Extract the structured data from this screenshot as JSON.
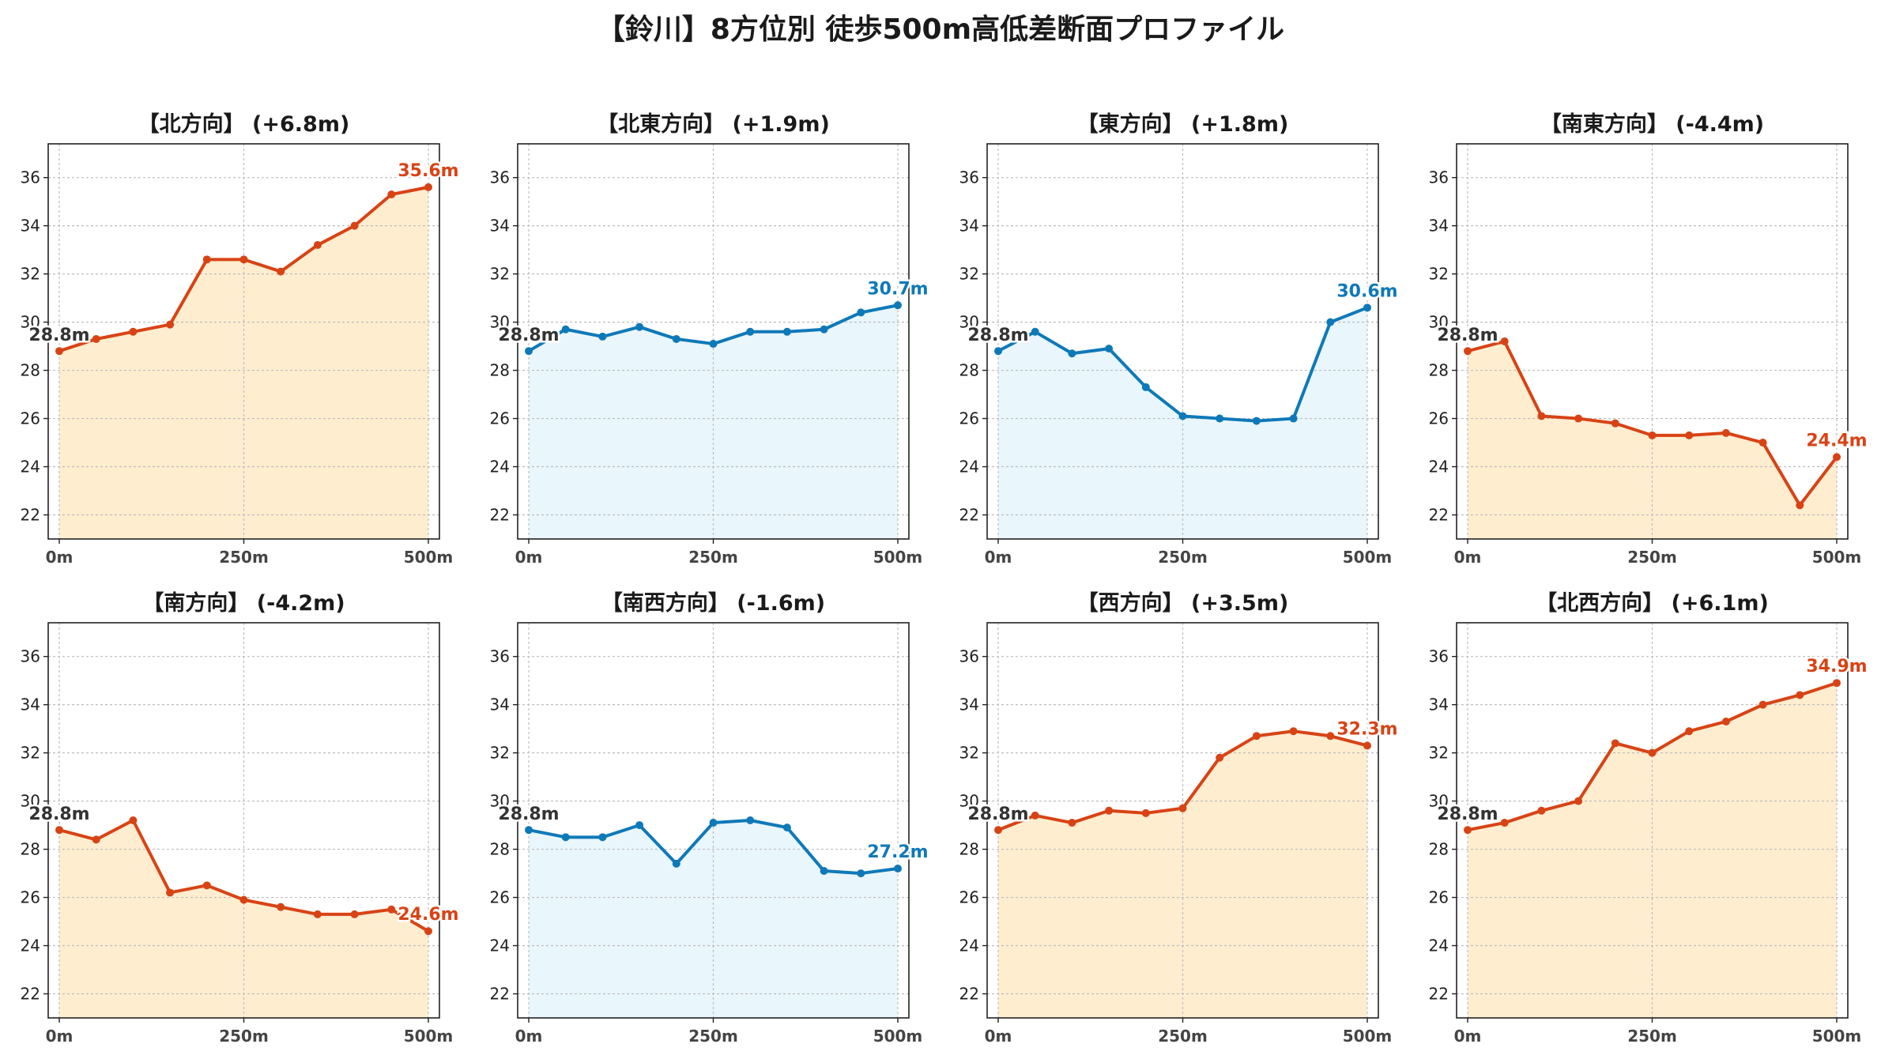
{
  "figure": {
    "title": "【鈴川】8方位別 徒歩500m高低差断面プロファイル"
  },
  "colors": {
    "up_line": "#d84315",
    "up_fill": "#ffedd0",
    "down_line": "#0e79b8",
    "down_fill": "#e9f6fb",
    "grid": "#bdbdbd",
    "start_label": "#333333"
  },
  "chart_data": [
    {
      "type": "area",
      "title": "【北方向】 (+6.8m)",
      "trend": "up",
      "x": [
        0,
        50,
        100,
        150,
        200,
        250,
        300,
        350,
        400,
        450,
        500
      ],
      "y": [
        28.8,
        29.3,
        29.6,
        29.9,
        32.6,
        32.6,
        32.1,
        33.2,
        34.0,
        35.3,
        35.6
      ],
      "start_label": "28.8m",
      "end_label": "35.6m",
      "xlim": [
        -15,
        515
      ],
      "ylim": [
        21,
        37.4
      ],
      "xticks": [
        0,
        250,
        500
      ],
      "xtick_labels": [
        "0m",
        "250m",
        "500m"
      ],
      "yticks": [
        22,
        24,
        26,
        28,
        30,
        32,
        34,
        36
      ],
      "grid": true
    },
    {
      "type": "area",
      "title": "【北東方向】 (+1.9m)",
      "trend": "down",
      "x": [
        0,
        50,
        100,
        150,
        200,
        250,
        300,
        350,
        400,
        450,
        500
      ],
      "y": [
        28.8,
        29.7,
        29.4,
        29.8,
        29.3,
        29.1,
        29.6,
        29.6,
        29.7,
        30.4,
        30.7
      ],
      "start_label": "28.8m",
      "end_label": "30.7m",
      "xlim": [
        -15,
        515
      ],
      "ylim": [
        21,
        37.4
      ],
      "xticks": [
        0,
        250,
        500
      ],
      "xtick_labels": [
        "0m",
        "250m",
        "500m"
      ],
      "yticks": [
        22,
        24,
        26,
        28,
        30,
        32,
        34,
        36
      ],
      "grid": true
    },
    {
      "type": "area",
      "title": "【東方向】 (+1.8m)",
      "trend": "down",
      "x": [
        0,
        50,
        100,
        150,
        200,
        250,
        300,
        350,
        400,
        450,
        500
      ],
      "y": [
        28.8,
        29.6,
        28.7,
        28.9,
        27.3,
        26.1,
        26.0,
        25.9,
        26.0,
        30.0,
        30.6
      ],
      "start_label": "28.8m",
      "end_label": "30.6m",
      "xlim": [
        -15,
        515
      ],
      "ylim": [
        21,
        37.4
      ],
      "xticks": [
        0,
        250,
        500
      ],
      "xtick_labels": [
        "0m",
        "250m",
        "500m"
      ],
      "yticks": [
        22,
        24,
        26,
        28,
        30,
        32,
        34,
        36
      ],
      "grid": true
    },
    {
      "type": "area",
      "title": "【南東方向】 (-4.4m)",
      "trend": "up",
      "x": [
        0,
        50,
        100,
        150,
        200,
        250,
        300,
        350,
        400,
        450,
        500
      ],
      "y": [
        28.8,
        29.2,
        26.1,
        26.0,
        25.8,
        25.3,
        25.3,
        25.4,
        25.0,
        22.4,
        24.4
      ],
      "start_label": "28.8m",
      "end_label": "24.4m",
      "xlim": [
        -15,
        515
      ],
      "ylim": [
        21,
        37.4
      ],
      "xticks": [
        0,
        250,
        500
      ],
      "xtick_labels": [
        "0m",
        "250m",
        "500m"
      ],
      "yticks": [
        22,
        24,
        26,
        28,
        30,
        32,
        34,
        36
      ],
      "grid": true
    },
    {
      "type": "area",
      "title": "【南方向】 (-4.2m)",
      "trend": "up",
      "x": [
        0,
        50,
        100,
        150,
        200,
        250,
        300,
        350,
        400,
        450,
        500
      ],
      "y": [
        28.8,
        28.4,
        29.2,
        26.2,
        26.5,
        25.9,
        25.6,
        25.3,
        25.3,
        25.5,
        24.6
      ],
      "start_label": "28.8m",
      "end_label": "24.6m",
      "xlim": [
        -15,
        515
      ],
      "ylim": [
        21,
        37.4
      ],
      "xticks": [
        0,
        250,
        500
      ],
      "xtick_labels": [
        "0m",
        "250m",
        "500m"
      ],
      "yticks": [
        22,
        24,
        26,
        28,
        30,
        32,
        34,
        36
      ],
      "grid": true
    },
    {
      "type": "area",
      "title": "【南西方向】 (-1.6m)",
      "trend": "down",
      "x": [
        0,
        50,
        100,
        150,
        200,
        250,
        300,
        350,
        400,
        450,
        500
      ],
      "y": [
        28.8,
        28.5,
        28.5,
        29.0,
        27.4,
        29.1,
        29.2,
        28.9,
        27.1,
        27.0,
        27.2
      ],
      "start_label": "28.8m",
      "end_label": "27.2m",
      "xlim": [
        -15,
        515
      ],
      "ylim": [
        21,
        37.4
      ],
      "xticks": [
        0,
        250,
        500
      ],
      "xtick_labels": [
        "0m",
        "250m",
        "500m"
      ],
      "yticks": [
        22,
        24,
        26,
        28,
        30,
        32,
        34,
        36
      ],
      "grid": true
    },
    {
      "type": "area",
      "title": "【西方向】 (+3.5m)",
      "trend": "up",
      "x": [
        0,
        50,
        100,
        150,
        200,
        250,
        300,
        350,
        400,
        450,
        500
      ],
      "y": [
        28.8,
        29.4,
        29.1,
        29.6,
        29.5,
        29.7,
        31.8,
        32.7,
        32.9,
        32.7,
        32.3
      ],
      "start_label": "28.8m",
      "end_label": "32.3m",
      "xlim": [
        -15,
        515
      ],
      "ylim": [
        21,
        37.4
      ],
      "xticks": [
        0,
        250,
        500
      ],
      "xtick_labels": [
        "0m",
        "250m",
        "500m"
      ],
      "yticks": [
        22,
        24,
        26,
        28,
        30,
        32,
        34,
        36
      ],
      "grid": true
    },
    {
      "type": "area",
      "title": "【北西方向】 (+6.1m)",
      "trend": "up",
      "x": [
        0,
        50,
        100,
        150,
        200,
        250,
        300,
        350,
        400,
        450,
        500
      ],
      "y": [
        28.8,
        29.1,
        29.6,
        30.0,
        32.4,
        32.0,
        32.9,
        33.3,
        34.0,
        34.4,
        34.9
      ],
      "start_label": "28.8m",
      "end_label": "34.9m",
      "xlim": [
        -15,
        515
      ],
      "ylim": [
        21,
        37.4
      ],
      "xticks": [
        0,
        250,
        500
      ],
      "xtick_labels": [
        "0m",
        "250m",
        "500m"
      ],
      "yticks": [
        22,
        24,
        26,
        28,
        30,
        32,
        34,
        36
      ],
      "grid": true
    }
  ]
}
